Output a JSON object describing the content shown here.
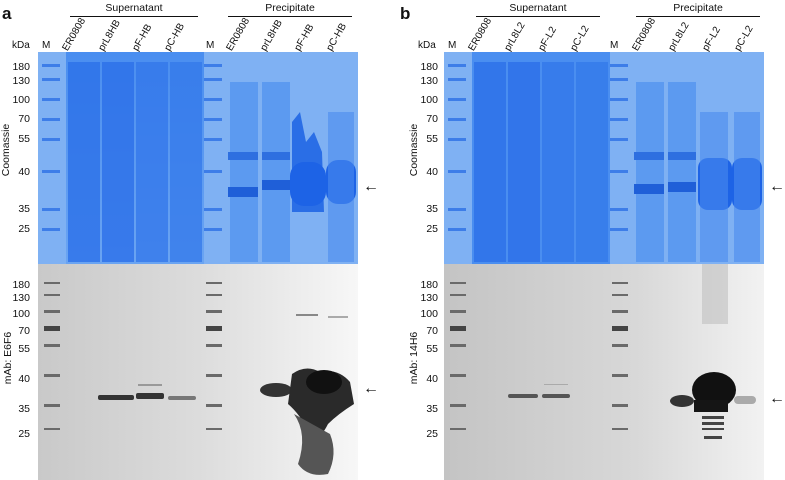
{
  "figure_a": {
    "letter": "a",
    "groups": {
      "supernatant": "Supernatant",
      "precipitate": "Precipitate"
    },
    "kda": "kDa",
    "marker": "M",
    "lanes_sup": [
      "ER0808",
      "prL8HB",
      "pF-HB",
      "pC-HB"
    ],
    "lanes_pre": [
      "ER0808",
      "prL8HB",
      "pF-HB",
      "pC-HB"
    ],
    "top_label": "Coomassie",
    "bottom_label": "mAb: E6F6",
    "arrow": "←"
  },
  "figure_b": {
    "letter": "b",
    "groups": {
      "supernatant": "Supernatant",
      "precipitate": "Precipitate"
    },
    "kda": "kDa",
    "marker": "M",
    "lanes_sup": [
      "ER0808",
      "prL8L2",
      "pF-L2",
      "pC-L2"
    ],
    "lanes_pre": [
      "ER0808",
      "prL8L2",
      "pF-L2",
      "pC-L2"
    ],
    "top_label": "Coomassie",
    "bottom_label": "mAb: 14H6",
    "arrow": "←"
  },
  "mw_markers": [
    "180",
    "130",
    "100",
    "70",
    "55",
    "40",
    "35",
    "25"
  ]
}
